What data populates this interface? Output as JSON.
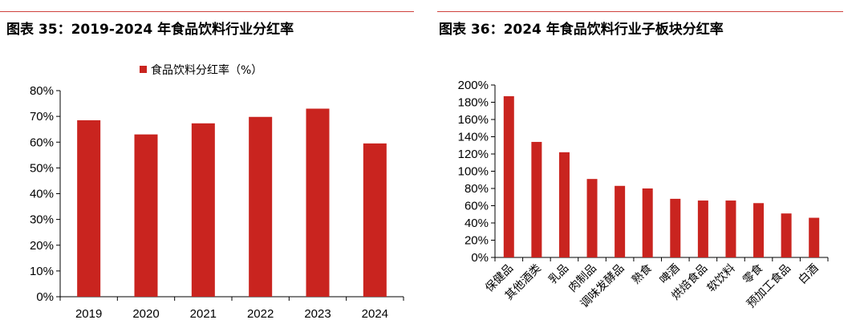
{
  "colors": {
    "bar": "#c9241f",
    "rule": "#d0433d",
    "axis": "#000000"
  },
  "chart_data": [
    {
      "type": "bar",
      "title": "图表 35：2019-2024 年食品饮料行业分红率",
      "legend": "食品饮料分红率（%）",
      "legend_position": "top-center",
      "categories": [
        "2019",
        "2020",
        "2021",
        "2022",
        "2023",
        "2024"
      ],
      "values": [
        68.5,
        63,
        67.3,
        69.8,
        73,
        59.5
      ],
      "ylim": [
        0,
        80
      ],
      "yticks": [
        "0%",
        "10%",
        "20%",
        "30%",
        "40%",
        "50%",
        "60%",
        "70%",
        "80%"
      ],
      "xlabel": "",
      "ylabel": "",
      "grid": false
    },
    {
      "type": "bar",
      "title": "图表 36：2024 年食品饮料行业子板块分红率",
      "categories": [
        "保健品",
        "其他酒类",
        "乳品",
        "肉制品",
        "调味发酵品",
        "熟食",
        "啤酒",
        "烘焙食品",
        "软饮料",
        "零食",
        "预加工食品",
        "白酒"
      ],
      "values": [
        187,
        134,
        122,
        91,
        83,
        80,
        68,
        66,
        66,
        63,
        51,
        46
      ],
      "ylim": [
        0,
        200
      ],
      "yticks": [
        "0%",
        "20%",
        "40%",
        "60%",
        "80%",
        "100%",
        "120%",
        "140%",
        "160%",
        "180%",
        "200%"
      ],
      "xlabel": "",
      "ylabel": "",
      "grid": false
    }
  ]
}
